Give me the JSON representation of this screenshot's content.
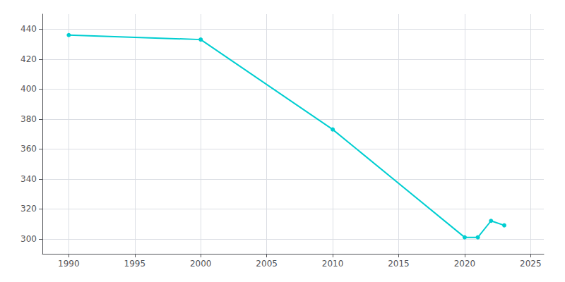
{
  "chart_data": {
    "type": "line",
    "x": [
      1990,
      2000,
      2010,
      2020,
      2021,
      2022,
      2023
    ],
    "values": [
      436,
      433,
      373,
      301,
      301,
      312,
      309
    ],
    "color": "#00CED1",
    "marker": "circle",
    "xlim": [
      1988,
      2026
    ],
    "ylim": [
      290,
      450
    ],
    "xticks": [
      1990,
      1995,
      2000,
      2005,
      2010,
      2015,
      2020,
      2025
    ],
    "yticks": [
      300,
      320,
      340,
      360,
      380,
      400,
      420,
      440
    ],
    "grid": true
  }
}
